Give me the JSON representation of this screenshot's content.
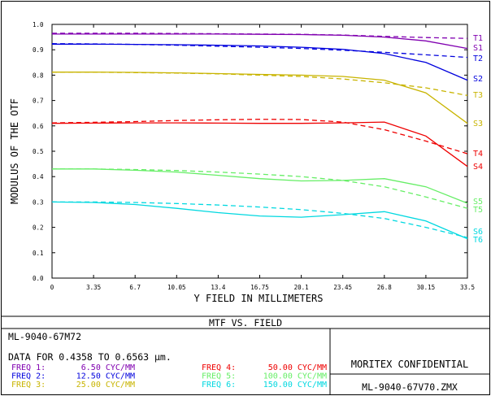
{
  "chart_data": {
    "type": "line",
    "xlabel": "Y FIELD IN MILLIMETERS",
    "ylabel": "MODULUS OF THE OTF",
    "xlim": [
      0,
      33.5
    ],
    "ylim": [
      0,
      1.0
    ],
    "x_ticks": [
      "0",
      "3.35",
      "6.7",
      "10.05",
      "13.4",
      "16.75",
      "20.1",
      "23.45",
      "26.8",
      "30.15",
      "33.5"
    ],
    "y_ticks": [
      "0.0",
      "0.1",
      "0.2",
      "0.3",
      "0.4",
      "0.5",
      "0.6",
      "0.7",
      "0.8",
      "0.9",
      "1.0"
    ],
    "grid": false,
    "series": [
      {
        "name": "T1",
        "color": "#8000b0",
        "dash": true,
        "x": [
          0,
          3.35,
          6.7,
          10.05,
          13.4,
          16.75,
          20.1,
          23.45,
          26.8,
          30.15,
          33.5
        ],
        "y": [
          0.965,
          0.965,
          0.965,
          0.964,
          0.963,
          0.962,
          0.961,
          0.958,
          0.953,
          0.948,
          0.945
        ]
      },
      {
        "name": "S1",
        "color": "#8000b0",
        "dash": false,
        "x": [
          0,
          3.35,
          6.7,
          10.05,
          13.4,
          16.75,
          20.1,
          23.45,
          26.8,
          30.15,
          33.5
        ],
        "y": [
          0.962,
          0.962,
          0.962,
          0.962,
          0.962,
          0.961,
          0.96,
          0.957,
          0.95,
          0.935,
          0.905
        ]
      },
      {
        "name": "T2",
        "color": "#0000dd",
        "dash": true,
        "x": [
          0,
          3.35,
          6.7,
          10.05,
          13.4,
          16.75,
          20.1,
          23.45,
          26.8,
          30.15,
          33.5
        ],
        "y": [
          0.924,
          0.923,
          0.921,
          0.918,
          0.914,
          0.91,
          0.905,
          0.898,
          0.89,
          0.88,
          0.87
        ]
      },
      {
        "name": "S2",
        "color": "#0000dd",
        "dash": false,
        "x": [
          0,
          3.35,
          6.7,
          10.05,
          13.4,
          16.75,
          20.1,
          23.45,
          26.8,
          30.15,
          33.5
        ],
        "y": [
          0.922,
          0.922,
          0.921,
          0.92,
          0.918,
          0.915,
          0.91,
          0.902,
          0.885,
          0.85,
          0.78
        ]
      },
      {
        "name": "T3",
        "color": "#c8b400",
        "dash": true,
        "x": [
          0,
          3.35,
          6.7,
          10.05,
          13.4,
          16.75,
          20.1,
          23.45,
          26.8,
          30.15,
          33.5
        ],
        "y": [
          0.812,
          0.812,
          0.81,
          0.808,
          0.805,
          0.8,
          0.795,
          0.785,
          0.77,
          0.75,
          0.72
        ]
      },
      {
        "name": "S3",
        "color": "#c8b400",
        "dash": false,
        "x": [
          0,
          3.35,
          6.7,
          10.05,
          13.4,
          16.75,
          20.1,
          23.45,
          26.8,
          30.15,
          33.5
        ],
        "y": [
          0.812,
          0.812,
          0.811,
          0.809,
          0.806,
          0.803,
          0.8,
          0.795,
          0.78,
          0.73,
          0.61
        ]
      },
      {
        "name": "T4",
        "color": "#ee0000",
        "dash": true,
        "x": [
          0,
          3.35,
          6.7,
          10.05,
          13.4,
          16.75,
          20.1,
          23.45,
          26.8,
          30.15,
          33.5
        ],
        "y": [
          0.612,
          0.614,
          0.617,
          0.621,
          0.624,
          0.626,
          0.625,
          0.615,
          0.585,
          0.54,
          0.49
        ]
      },
      {
        "name": "S4",
        "color": "#ee0000",
        "dash": false,
        "x": [
          0,
          3.35,
          6.7,
          10.05,
          13.4,
          16.75,
          20.1,
          23.45,
          26.8,
          30.15,
          33.5
        ],
        "y": [
          0.61,
          0.611,
          0.612,
          0.612,
          0.611,
          0.61,
          0.61,
          0.612,
          0.615,
          0.56,
          0.44
        ]
      },
      {
        "name": "T5",
        "color": "#66ee66",
        "dash": true,
        "x": [
          0,
          3.35,
          6.7,
          10.05,
          13.4,
          16.75,
          20.1,
          23.45,
          26.8,
          30.15,
          33.5
        ],
        "y": [
          0.43,
          0.43,
          0.428,
          0.424,
          0.418,
          0.41,
          0.4,
          0.385,
          0.36,
          0.32,
          0.275
        ]
      },
      {
        "name": "S5",
        "color": "#66ee66",
        "dash": false,
        "x": [
          0,
          3.35,
          6.7,
          10.05,
          13.4,
          16.75,
          20.1,
          23.45,
          26.8,
          30.15,
          33.5
        ],
        "y": [
          0.43,
          0.43,
          0.425,
          0.418,
          0.405,
          0.392,
          0.383,
          0.385,
          0.392,
          0.36,
          0.295
        ]
      },
      {
        "name": "T6",
        "color": "#00d8e0",
        "dash": true,
        "x": [
          0,
          3.35,
          6.7,
          10.05,
          13.4,
          16.75,
          20.1,
          23.45,
          26.8,
          30.15,
          33.5
        ],
        "y": [
          0.3,
          0.3,
          0.298,
          0.294,
          0.288,
          0.28,
          0.27,
          0.255,
          0.235,
          0.2,
          0.16
        ]
      },
      {
        "name": "S6",
        "color": "#00d8e0",
        "dash": false,
        "x": [
          0,
          3.35,
          6.7,
          10.05,
          13.4,
          16.75,
          20.1,
          23.45,
          26.8,
          30.15,
          33.5
        ],
        "y": [
          0.3,
          0.298,
          0.29,
          0.275,
          0.258,
          0.245,
          0.24,
          0.25,
          0.262,
          0.225,
          0.155
        ]
      }
    ]
  },
  "footer": {
    "title": "MTF VS. FIELD",
    "lens_id": "ML-9040-67M72",
    "data_line": "DATA FOR 0.4358 TO 0.6563 μm.",
    "confidential": "MORITEX CONFIDENTIAL",
    "file_name": "ML-9040-67V70.ZMX",
    "freqs": [
      {
        "label": "FREQ 1:",
        "value": "6.50 CYC/MM",
        "color": "#8000b0"
      },
      {
        "label": "FREQ 2:",
        "value": "12.50 CYC/MM",
        "color": "#0000dd"
      },
      {
        "label": "FREQ 3:",
        "value": "25.00 CYC/MM",
        "color": "#c8b400"
      },
      {
        "label": "FREQ 4:",
        "value": "50.00 CYC/MM",
        "color": "#ee0000"
      },
      {
        "label": "FREQ 5:",
        "value": "100.00 CYC/MM",
        "color": "#66ee66"
      },
      {
        "label": "FREQ 6:",
        "value": "150.00 CYC/MM",
        "color": "#00d8e0"
      }
    ]
  }
}
